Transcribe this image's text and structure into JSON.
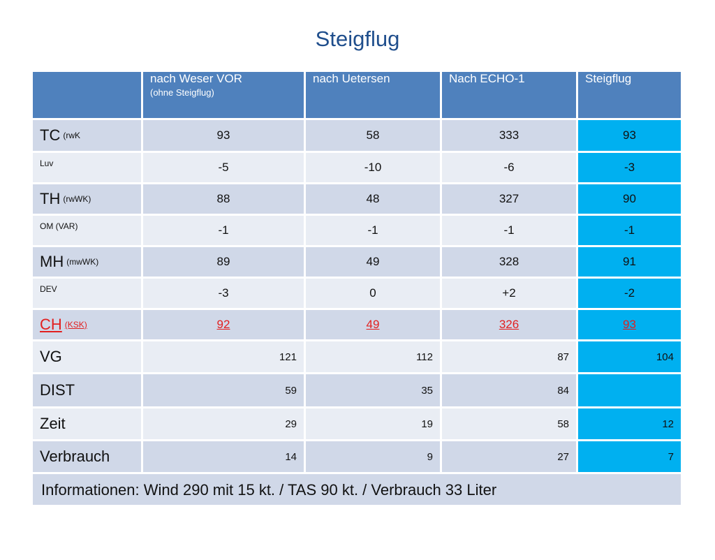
{
  "title": "Steigflug",
  "headers": [
    {
      "main": "nach Weser VOR",
      "sub": "(ohne Steigflug)"
    },
    {
      "main": "nach Uetersen",
      "sub": ""
    },
    {
      "main": "Nach ECHO-1",
      "sub": ""
    },
    {
      "main": "Steigflug",
      "sub": ""
    }
  ],
  "rows": [
    {
      "label": "TC",
      "label_sub": "(rwK",
      "values": [
        "93",
        "58",
        "333",
        "93"
      ]
    },
    {
      "label": "Luv",
      "label_sub": "",
      "values": [
        "-5",
        "-10",
        "-6",
        "-3"
      ]
    },
    {
      "label": "TH",
      "label_sub": "(rwWK)",
      "values": [
        "88",
        "48",
        "327",
        "90"
      ]
    },
    {
      "label": "OM (VAR)",
      "label_sub": "",
      "values": [
        "-1",
        "-1",
        "-1",
        "-1"
      ]
    },
    {
      "label": "MH",
      "label_sub": "(mwWK)",
      "values": [
        "89",
        "49",
        "328",
        "91"
      ]
    },
    {
      "label": "DEV",
      "label_sub": "",
      "values": [
        "-3",
        "0",
        "+2",
        "-2"
      ]
    },
    {
      "label": "CH",
      "label_sub": "(KSK)",
      "values": [
        "92",
        "49",
        "326",
        "93"
      ]
    },
    {
      "label": "VG",
      "label_sub": "",
      "values": [
        "121",
        "112",
        "87",
        "104"
      ]
    },
    {
      "label": "DIST",
      "label_sub": "",
      "values": [
        "59",
        "35",
        "84",
        ""
      ]
    },
    {
      "label": "Zeit",
      "label_sub": "",
      "values": [
        "29",
        "19",
        "58",
        "12"
      ]
    },
    {
      "label": "Verbrauch",
      "label_sub": "",
      "values": [
        "14",
        "9",
        "27",
        "7"
      ]
    }
  ],
  "info": "Informationen:  Wind 290 mit 15 kt. / TAS 90 kt. / Verbrauch 33 Liter",
  "colors": {
    "header": "#4f81bd",
    "row_a": "#d0d8e8",
    "row_b": "#e9edf4",
    "highlight": "#00b0f0",
    "red": "#e21f1f"
  }
}
